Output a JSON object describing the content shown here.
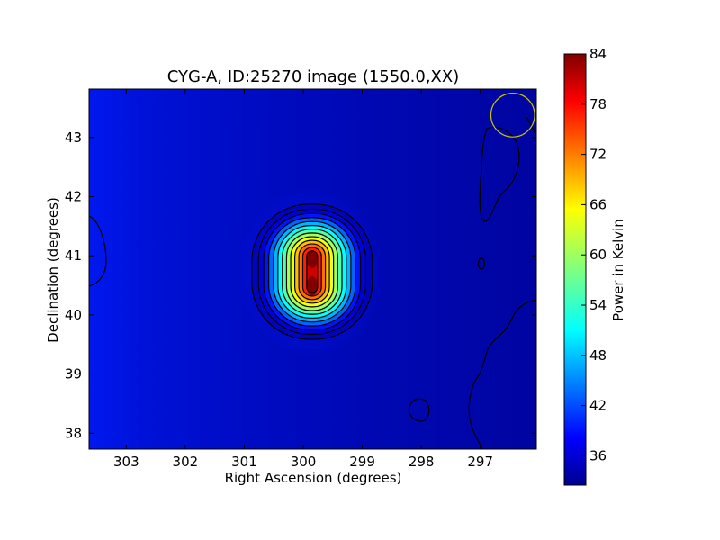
{
  "chart_data": {
    "type": "heatmap",
    "title": "CYG-A, ID:25270 image (1550.0,XX)",
    "xlabel": "Right Ascension (degrees)",
    "ylabel": "Declination (degrees)",
    "x_ticks": [
      303,
      302,
      301,
      300,
      299,
      298,
      297
    ],
    "y_ticks": [
      38,
      39,
      40,
      41,
      42,
      43
    ],
    "xlim": [
      303.63,
      296.05
    ],
    "ylim": [
      37.73,
      43.82
    ],
    "colormap": "jet",
    "colorbar": {
      "label": "Power in Kelvin",
      "ticks": [
        36,
        42,
        48,
        54,
        60,
        66,
        72,
        78,
        84
      ],
      "range": [
        32.5,
        84
      ]
    },
    "source": {
      "ra": 299.85,
      "dec": 40.73,
      "peak_kelvin": 84,
      "background_kelvin": 33.5
    },
    "beam_circle": {
      "ra": 296.45,
      "dec": 43.38,
      "radius_deg": 0.37,
      "color": "#c8c800"
    },
    "contour_levels": [
      35,
      37,
      40,
      44,
      48,
      52,
      56,
      60,
      64,
      68,
      72,
      76,
      80
    ]
  }
}
